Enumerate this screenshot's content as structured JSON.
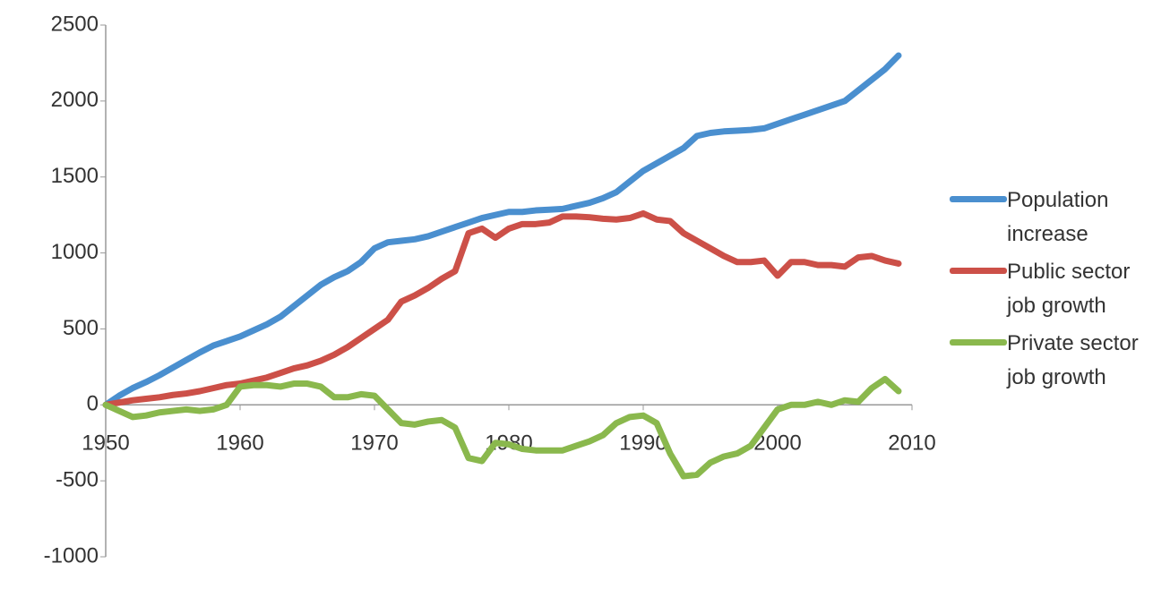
{
  "chart_data": {
    "type": "line",
    "x": [
      1950,
      1951,
      1952,
      1953,
      1954,
      1955,
      1956,
      1957,
      1958,
      1959,
      1960,
      1961,
      1962,
      1963,
      1964,
      1965,
      1966,
      1967,
      1968,
      1969,
      1970,
      1971,
      1972,
      1973,
      1974,
      1975,
      1976,
      1977,
      1978,
      1979,
      1980,
      1981,
      1982,
      1983,
      1984,
      1985,
      1986,
      1987,
      1988,
      1989,
      1990,
      1991,
      1992,
      1993,
      1994,
      1995,
      1996,
      1997,
      1998,
      1999,
      2000,
      2001,
      2002,
      2003,
      2004,
      2005,
      2006,
      2007,
      2008,
      2009
    ],
    "series": [
      {
        "name": "Population increase",
        "color": "#4a8fcf",
        "values": [
          0,
          60,
          110,
          150,
          195,
          245,
          295,
          345,
          390,
          420,
          450,
          490,
          530,
          580,
          650,
          720,
          790,
          840,
          880,
          940,
          1030,
          1070,
          1080,
          1090,
          1110,
          1140,
          1170,
          1200,
          1230,
          1250,
          1270,
          1270,
          1280,
          1285,
          1290,
          1310,
          1330,
          1360,
          1400,
          1470,
          1540,
          1590,
          1640,
          1690,
          1770,
          1790,
          1800,
          1805,
          1810,
          1820,
          1850,
          1880,
          1910,
          1940,
          1970,
          2000,
          2070,
          2140,
          2210,
          2300
        ]
      },
      {
        "name": "Public sector job growth",
        "color": "#cc5048",
        "values": [
          0,
          15,
          30,
          40,
          50,
          65,
          75,
          90,
          110,
          130,
          140,
          160,
          180,
          210,
          240,
          260,
          290,
          330,
          380,
          440,
          500,
          560,
          680,
          720,
          770,
          830,
          880,
          1130,
          1160,
          1100,
          1160,
          1190,
          1190,
          1200,
          1240,
          1240,
          1235,
          1225,
          1220,
          1230,
          1260,
          1220,
          1210,
          1130,
          1080,
          1030,
          980,
          940,
          940,
          950,
          850,
          940,
          940,
          920,
          920,
          910,
          970,
          980,
          950,
          930
        ]
      },
      {
        "name": "Private sector job growth",
        "color": "#8ab84d",
        "values": [
          0,
          -40,
          -80,
          -70,
          -50,
          -40,
          -30,
          -40,
          -30,
          0,
          120,
          130,
          130,
          120,
          140,
          140,
          120,
          50,
          50,
          70,
          60,
          -30,
          -120,
          -130,
          -110,
          -100,
          -150,
          -350,
          -370,
          -250,
          -260,
          -290,
          -300,
          -300,
          -300,
          -270,
          -240,
          -200,
          -120,
          -80,
          -70,
          -120,
          -320,
          -470,
          -460,
          -380,
          -340,
          -320,
          -270,
          -150,
          -30,
          0,
          0,
          20,
          0,
          30,
          20,
          110,
          170,
          90
        ]
      }
    ],
    "xlim": [
      1950,
      2010
    ],
    "xticks": [
      1950,
      1960,
      1970,
      1980,
      1990,
      2000,
      2010
    ],
    "ylim": [
      -1000,
      2500
    ],
    "yticks": [
      -1000,
      -500,
      0,
      500,
      1000,
      1500,
      2000,
      2500
    ],
    "legend": "right"
  }
}
